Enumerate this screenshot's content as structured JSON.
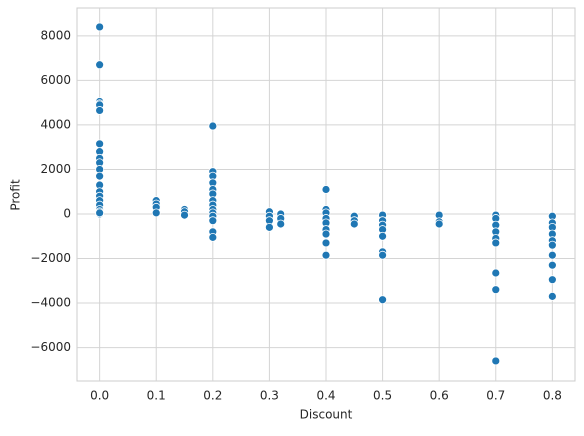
{
  "chart_data": {
    "type": "scatter",
    "xlabel": "Discount",
    "ylabel": "Profit",
    "color": "#1f77b4",
    "grid": true,
    "x": [
      0,
      0,
      0,
      0,
      0,
      0,
      0,
      0,
      0,
      0,
      0,
      0,
      0,
      0,
      0,
      0,
      0,
      0,
      0,
      0,
      0,
      0.1,
      0.1,
      0.1,
      0.1,
      0.15,
      0.15,
      0.15,
      0.2,
      0.2,
      0.2,
      0.2,
      0.2,
      0.2,
      0.2,
      0.2,
      0.2,
      0.2,
      0.2,
      0.2,
      0.2,
      0.2,
      0.3,
      0.3,
      0.3,
      0.3,
      0.32,
      0.32,
      0.32,
      0.4,
      0.4,
      0.4,
      0.4,
      0.4,
      0.4,
      0.4,
      0.4,
      0.4,
      0.45,
      0.45,
      0.45,
      0.5,
      0.5,
      0.5,
      0.5,
      0.5,
      0.5,
      0.5,
      0.5,
      0.6,
      0.6,
      0.6,
      0.7,
      0.7,
      0.7,
      0.7,
      0.7,
      0.7,
      0.7,
      0.7,
      0.7,
      0.8,
      0.8,
      0.8,
      0.8,
      0.8,
      0.8,
      0.8,
      0.8,
      0.8,
      0.8
    ],
    "values": [
      8400,
      6700,
      5050,
      4950,
      4900,
      4650,
      3150,
      2800,
      2500,
      2300,
      2000,
      1700,
      1300,
      1000,
      800,
      600,
      400,
      200,
      100,
      0,
      50,
      600,
      450,
      300,
      50,
      200,
      100,
      -50,
      3950,
      1900,
      1700,
      1400,
      1100,
      900,
      600,
      400,
      200,
      50,
      -100,
      -300,
      -800,
      -1050,
      100,
      -100,
      -300,
      -600,
      0,
      -200,
      -450,
      1100,
      200,
      50,
      -200,
      -400,
      -700,
      -900,
      -1300,
      -1850,
      -100,
      -300,
      -450,
      -50,
      -300,
      -500,
      -700,
      -1000,
      -1700,
      -1850,
      -3850,
      -50,
      -350,
      -450,
      -50,
      -200,
      -500,
      -800,
      -1100,
      -1300,
      -2650,
      -3400,
      -6600,
      -100,
      -400,
      -600,
      -900,
      -1200,
      -1400,
      -1850,
      -2300,
      -2950,
      -3700
    ],
    "xlim": [
      -0.04,
      0.84
    ],
    "xticks": [
      {
        "value": 0,
        "label": "0.0"
      },
      0.1,
      0.2,
      0.3,
      0.4,
      0.5,
      0.6,
      0.7,
      0.8
    ],
    "ylim": [
      -7500,
      9250
    ],
    "yticks": [
      {
        "value": -6000,
        "label": "−6000"
      },
      {
        "value": -4000,
        "label": "−4000"
      },
      {
        "value": -2000,
        "label": "−2000"
      },
      0,
      2000,
      4000,
      6000,
      8000
    ]
  }
}
